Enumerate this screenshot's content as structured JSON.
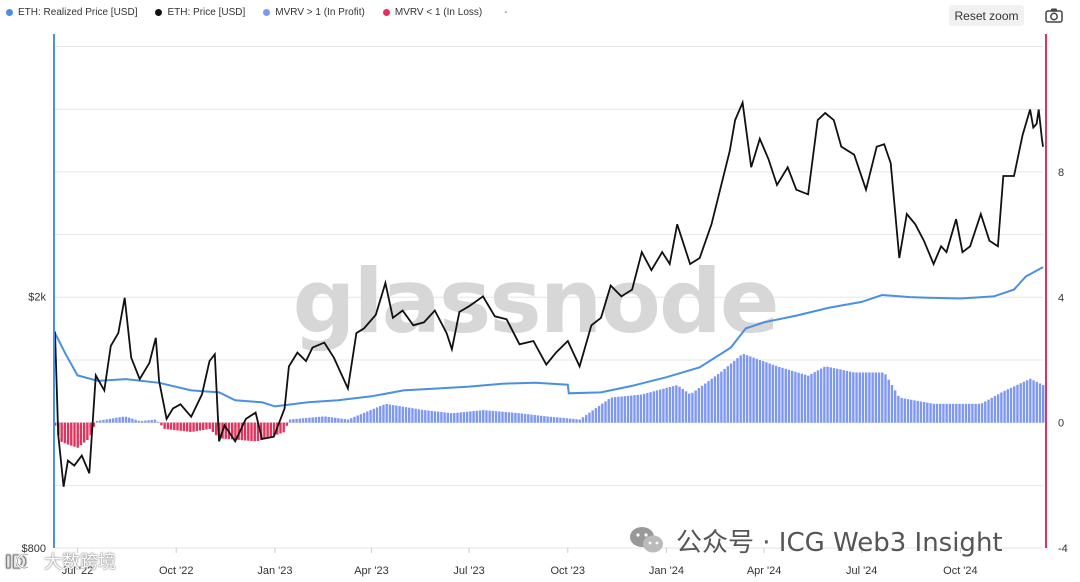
{
  "legend": [
    {
      "label": "ETH: Realized Price [USD]",
      "color": "#4a90e2"
    },
    {
      "label": "ETH: Price [USD]",
      "color": "#111111"
    },
    {
      "label": "MVRV > 1 (In Profit)",
      "color": "#7e97f0"
    },
    {
      "label": "MVRV < 1 (In Loss)",
      "color": "#e0335e"
    }
  ],
  "legend_extra": "-",
  "reset_zoom_label": "Reset zoom",
  "watermark_text": "glassnode",
  "overlay_text": {
    "wechat": "公众号 · ICG Web3 Insight",
    "cn_brand": "大数跨境"
  },
  "colors": {
    "realized_price": "#4a90e2",
    "price": "#111111",
    "profit": "#7e97f0",
    "loss": "#e0335e",
    "left_axis": "#4a90e2",
    "right_axis": "#e0335e",
    "grid": "#e6e6e6"
  },
  "chart_data": {
    "type": "line",
    "x_range": [
      "2022-06-10",
      "2024-12-17"
    ],
    "x_ticks": [
      {
        "date": "2022-07-01",
        "label": "Jul '22"
      },
      {
        "date": "2022-10-01",
        "label": "Oct '22"
      },
      {
        "date": "2023-01-01",
        "label": "Jan '23"
      },
      {
        "date": "2023-04-01",
        "label": "Apr '23"
      },
      {
        "date": "2023-07-01",
        "label": "Jul '23"
      },
      {
        "date": "2023-10-01",
        "label": "Oct '23"
      },
      {
        "date": "2024-01-01",
        "label": "Jan '24"
      },
      {
        "date": "2024-04-01",
        "label": "Apr '24"
      },
      {
        "date": "2024-07-01",
        "label": "Jul '24"
      },
      {
        "date": "2024-10-01",
        "label": "Oct '24"
      }
    ],
    "y_left": {
      "scale": "log",
      "range": [
        800,
        5200
      ],
      "tick_labels": [
        {
          "value": 800,
          "label": "$800"
        },
        {
          "value": 2000,
          "label": "$2k"
        }
      ]
    },
    "y_right": {
      "range": [
        -4,
        12.4
      ],
      "ticks": [
        -4,
        0,
        4,
        8
      ]
    },
    "series": [
      {
        "name": "ETH: Price [USD]",
        "axis": "left",
        "points": [
          [
            "2022-06-10",
            1760
          ],
          [
            "2022-06-13",
            1210
          ],
          [
            "2022-06-18",
            1000
          ],
          [
            "2022-06-22",
            1100
          ],
          [
            "2022-06-28",
            1080
          ],
          [
            "2022-07-05",
            1120
          ],
          [
            "2022-07-12",
            1050
          ],
          [
            "2022-07-18",
            1500
          ],
          [
            "2022-07-26",
            1420
          ],
          [
            "2022-08-01",
            1670
          ],
          [
            "2022-08-08",
            1750
          ],
          [
            "2022-08-14",
            1990
          ],
          [
            "2022-08-20",
            1600
          ],
          [
            "2022-08-28",
            1480
          ],
          [
            "2022-09-06",
            1570
          ],
          [
            "2022-09-12",
            1720
          ],
          [
            "2022-09-15",
            1470
          ],
          [
            "2022-09-22",
            1280
          ],
          [
            "2022-09-28",
            1330
          ],
          [
            "2022-10-05",
            1350
          ],
          [
            "2022-10-15",
            1290
          ],
          [
            "2022-10-25",
            1400
          ],
          [
            "2022-11-01",
            1580
          ],
          [
            "2022-11-06",
            1620
          ],
          [
            "2022-11-10",
            1180
          ],
          [
            "2022-11-15",
            1250
          ],
          [
            "2022-11-25",
            1180
          ],
          [
            "2022-12-05",
            1280
          ],
          [
            "2022-12-14",
            1310
          ],
          [
            "2022-12-20",
            1190
          ],
          [
            "2022-12-31",
            1200
          ],
          [
            "2023-01-10",
            1330
          ],
          [
            "2023-01-14",
            1550
          ],
          [
            "2023-01-22",
            1630
          ],
          [
            "2023-01-30",
            1580
          ],
          [
            "2023-02-05",
            1660
          ],
          [
            "2023-02-16",
            1690
          ],
          [
            "2023-02-25",
            1600
          ],
          [
            "2023-03-10",
            1430
          ],
          [
            "2023-03-18",
            1750
          ],
          [
            "2023-03-25",
            1780
          ],
          [
            "2023-04-05",
            1870
          ],
          [
            "2023-04-14",
            2100
          ],
          [
            "2023-04-21",
            1850
          ],
          [
            "2023-04-30",
            1900
          ],
          [
            "2023-05-10",
            1800
          ],
          [
            "2023-05-20",
            1820
          ],
          [
            "2023-05-30",
            1900
          ],
          [
            "2023-06-10",
            1750
          ],
          [
            "2023-06-15",
            1650
          ],
          [
            "2023-06-22",
            1890
          ],
          [
            "2023-07-01",
            1930
          ],
          [
            "2023-07-14",
            2000
          ],
          [
            "2023-07-25",
            1860
          ],
          [
            "2023-08-05",
            1840
          ],
          [
            "2023-08-17",
            1680
          ],
          [
            "2023-08-30",
            1700
          ],
          [
            "2023-09-11",
            1560
          ],
          [
            "2023-09-20",
            1630
          ],
          [
            "2023-10-01",
            1700
          ],
          [
            "2023-10-12",
            1550
          ],
          [
            "2023-10-23",
            1800
          ],
          [
            "2023-11-01",
            1850
          ],
          [
            "2023-11-10",
            2080
          ],
          [
            "2023-11-20",
            2000
          ],
          [
            "2023-11-30",
            2050
          ],
          [
            "2023-12-09",
            2350
          ],
          [
            "2023-12-18",
            2200
          ],
          [
            "2023-12-28",
            2350
          ],
          [
            "2024-01-04",
            2250
          ],
          [
            "2024-01-11",
            2600
          ],
          [
            "2024-01-23",
            2250
          ],
          [
            "2024-02-01",
            2300
          ],
          [
            "2024-02-12",
            2600
          ],
          [
            "2024-02-20",
            2950
          ],
          [
            "2024-02-29",
            3400
          ],
          [
            "2024-03-05",
            3800
          ],
          [
            "2024-03-12",
            4050
          ],
          [
            "2024-03-20",
            3200
          ],
          [
            "2024-03-28",
            3550
          ],
          [
            "2024-04-05",
            3300
          ],
          [
            "2024-04-13",
            3000
          ],
          [
            "2024-04-23",
            3200
          ],
          [
            "2024-05-01",
            2950
          ],
          [
            "2024-05-12",
            2900
          ],
          [
            "2024-05-21",
            3800
          ],
          [
            "2024-05-28",
            3900
          ],
          [
            "2024-06-05",
            3800
          ],
          [
            "2024-06-12",
            3450
          ],
          [
            "2024-06-24",
            3350
          ],
          [
            "2024-07-05",
            2950
          ],
          [
            "2024-07-15",
            3450
          ],
          [
            "2024-07-22",
            3480
          ],
          [
            "2024-07-28",
            3250
          ],
          [
            "2024-08-05",
            2300
          ],
          [
            "2024-08-12",
            2700
          ],
          [
            "2024-08-20",
            2600
          ],
          [
            "2024-08-28",
            2450
          ],
          [
            "2024-09-06",
            2250
          ],
          [
            "2024-09-13",
            2400
          ],
          [
            "2024-09-18",
            2350
          ],
          [
            "2024-09-27",
            2650
          ],
          [
            "2024-10-03",
            2350
          ],
          [
            "2024-10-10",
            2400
          ],
          [
            "2024-10-20",
            2700
          ],
          [
            "2024-10-28",
            2450
          ],
          [
            "2024-11-05",
            2400
          ],
          [
            "2024-11-10",
            3100
          ],
          [
            "2024-11-20",
            3100
          ],
          [
            "2024-11-28",
            3600
          ],
          [
            "2024-12-05",
            3950
          ],
          [
            "2024-12-08",
            3700
          ],
          [
            "2024-12-11",
            3750
          ],
          [
            "2024-12-13",
            3950
          ],
          [
            "2024-12-16",
            3550
          ],
          [
            "2024-12-17",
            3450
          ]
        ]
      },
      {
        "name": "ETH: Realized Price [USD]",
        "axis": "left",
        "points": [
          [
            "2022-06-10",
            1750
          ],
          [
            "2022-06-20",
            1620
          ],
          [
            "2022-07-01",
            1500
          ],
          [
            "2022-07-20",
            1470
          ],
          [
            "2022-08-15",
            1480
          ],
          [
            "2022-09-15",
            1460
          ],
          [
            "2022-10-15",
            1420
          ],
          [
            "2022-11-10",
            1410
          ],
          [
            "2022-11-25",
            1370
          ],
          [
            "2022-12-20",
            1360
          ],
          [
            "2023-01-01",
            1340
          ],
          [
            "2023-02-01",
            1360
          ],
          [
            "2023-03-01",
            1370
          ],
          [
            "2023-04-01",
            1390
          ],
          [
            "2023-05-01",
            1420
          ],
          [
            "2023-06-01",
            1430
          ],
          [
            "2023-07-01",
            1440
          ],
          [
            "2023-08-01",
            1455
          ],
          [
            "2023-09-01",
            1460
          ],
          [
            "2023-10-01",
            1450
          ],
          [
            "2023-10-02",
            1405
          ],
          [
            "2023-11-01",
            1410
          ],
          [
            "2023-12-01",
            1445
          ],
          [
            "2024-01-01",
            1490
          ],
          [
            "2024-02-01",
            1545
          ],
          [
            "2024-03-01",
            1660
          ],
          [
            "2024-03-15",
            1780
          ],
          [
            "2024-04-01",
            1820
          ],
          [
            "2024-05-01",
            1865
          ],
          [
            "2024-06-01",
            1920
          ],
          [
            "2024-07-01",
            1960
          ],
          [
            "2024-07-20",
            2010
          ],
          [
            "2024-08-15",
            1995
          ],
          [
            "2024-09-01",
            1990
          ],
          [
            "2024-10-01",
            1985
          ],
          [
            "2024-11-01",
            2000
          ],
          [
            "2024-11-20",
            2050
          ],
          [
            "2024-12-01",
            2150
          ],
          [
            "2024-12-17",
            2225
          ]
        ]
      },
      {
        "name": "MVRV",
        "axis": "right",
        "points": [
          [
            "2022-06-10",
            -0.1
          ],
          [
            "2022-06-15",
            -0.6
          ],
          [
            "2022-06-22",
            -0.7
          ],
          [
            "2022-07-01",
            -0.8
          ],
          [
            "2022-07-12",
            -0.5
          ],
          [
            "2022-07-18",
            0.05
          ],
          [
            "2022-08-14",
            0.2
          ],
          [
            "2022-08-28",
            0.05
          ],
          [
            "2022-09-12",
            0.1
          ],
          [
            "2022-09-20",
            -0.2
          ],
          [
            "2022-10-15",
            -0.3
          ],
          [
            "2022-11-01",
            -0.2
          ],
          [
            "2022-11-10",
            -0.5
          ],
          [
            "2022-12-15",
            -0.6
          ],
          [
            "2023-01-10",
            -0.3
          ],
          [
            "2023-01-14",
            0.1
          ],
          [
            "2023-02-16",
            0.2
          ],
          [
            "2023-03-10",
            0.1
          ],
          [
            "2023-04-14",
            0.6
          ],
          [
            "2023-05-20",
            0.4
          ],
          [
            "2023-06-15",
            0.3
          ],
          [
            "2023-07-14",
            0.4
          ],
          [
            "2023-08-17",
            0.3
          ],
          [
            "2023-09-11",
            0.2
          ],
          [
            "2023-10-12",
            0.1
          ],
          [
            "2023-11-10",
            0.8
          ],
          [
            "2023-12-09",
            0.9
          ],
          [
            "2024-01-11",
            1.2
          ],
          [
            "2024-01-23",
            0.9
          ],
          [
            "2024-02-20",
            1.6
          ],
          [
            "2024-03-12",
            2.2
          ],
          [
            "2024-04-13",
            1.8
          ],
          [
            "2024-05-12",
            1.5
          ],
          [
            "2024-05-28",
            1.8
          ],
          [
            "2024-06-24",
            1.6
          ],
          [
            "2024-07-22",
            1.6
          ],
          [
            "2024-08-05",
            0.8
          ],
          [
            "2024-09-06",
            0.6
          ],
          [
            "2024-10-20",
            0.6
          ],
          [
            "2024-11-10",
            1.0
          ],
          [
            "2024-12-05",
            1.4
          ],
          [
            "2024-12-17",
            1.2
          ]
        ]
      }
    ]
  }
}
